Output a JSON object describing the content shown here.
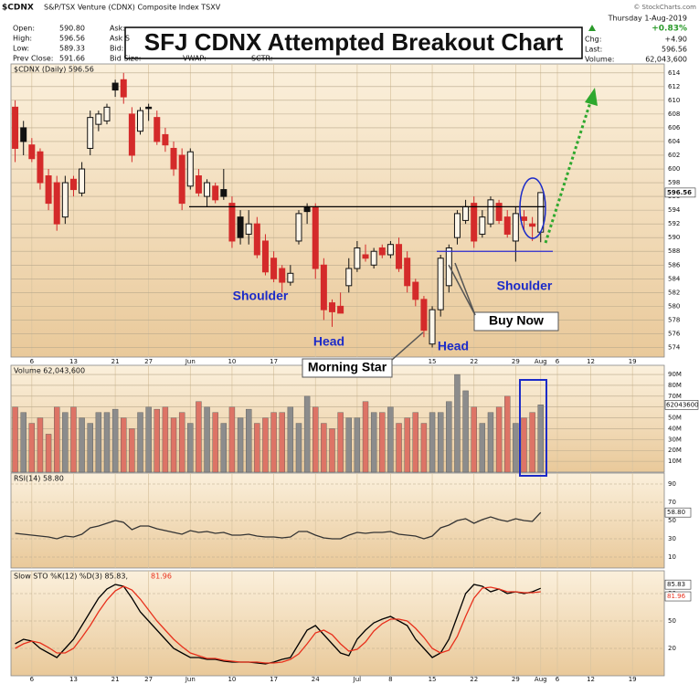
{
  "header": {
    "symbol": "$CDNX",
    "name": "S&P/TSX Venture (CDNX) Composite Index  TSXV",
    "copyright": "© StockCharts.com",
    "date": "Thursday  1-Aug-2019",
    "quote_left": [
      [
        "Open:",
        "590.80"
      ],
      [
        "High:",
        "596.56"
      ],
      [
        "Low:",
        "589.33"
      ],
      [
        "Prev Close:",
        "591.66"
      ]
    ],
    "quote_mid": [
      "Ask:",
      "Ask S",
      "Bid:",
      "Bid Size:"
    ],
    "quote_extra": [
      "VWAP:",
      "SCTR:"
    ],
    "change_pct": "+0.83%",
    "quote_right": [
      [
        "Chg:",
        "+4.90"
      ],
      [
        "Last:",
        "596.56"
      ],
      [
        "Volume:",
        "62,043,600"
      ]
    ]
  },
  "title": "SFJ CDNX Attempted Breakout Chart",
  "annotations": [
    "Shoulder",
    "Head",
    "Morning Star",
    "Head",
    "Buy Now",
    "Shoulder"
  ],
  "chart_data": [
    {
      "type": "candlestick",
      "title": "$CDNX (Daily) 596.56",
      "last_label": "596.56",
      "up_color": "#111111",
      "down_color": "#d42a2a",
      "categories": [
        null,
        null,
        "6",
        null,
        null,
        null,
        null,
        "13",
        null,
        null,
        null,
        null,
        "21",
        null,
        null,
        null,
        "27",
        null,
        null,
        null,
        null,
        "Jun",
        null,
        null,
        null,
        null,
        "10",
        null,
        null,
        null,
        null,
        "17",
        null,
        null,
        null,
        null,
        "24",
        null,
        null,
        null,
        null,
        "Jul",
        null,
        null,
        null,
        "8",
        null,
        null,
        null,
        null,
        "15",
        null,
        null,
        null,
        null,
        "22",
        null,
        null,
        null,
        null,
        "29",
        null,
        null,
        "Aug",
        null,
        "6",
        null,
        null,
        null,
        "12",
        null,
        null,
        null,
        null,
        "19",
        null,
        null
      ],
      "open": [
        609,
        606,
        603.5,
        602.5,
        599,
        598,
        593,
        598.5,
        596.5,
        603,
        606.5,
        607,
        612.5,
        613,
        608,
        605.5,
        609,
        607.5,
        605,
        603,
        602,
        597.5,
        599,
        596,
        597.5,
        597,
        595,
        593,
        590.5,
        592,
        589.5,
        587,
        585.5,
        583.5,
        589.5,
        594.5,
        594.5,
        586,
        580.5,
        580,
        583,
        585.5,
        587.5,
        586,
        588.5,
        587.5,
        589,
        587,
        583.5,
        581,
        574.5,
        579.5,
        583,
        590,
        592.5,
        595,
        590.5,
        592,
        595,
        593,
        589.5,
        593,
        592,
        590.8,
        null,
        null,
        null,
        null,
        null,
        null,
        null,
        null,
        null,
        null,
        null,
        null,
        null
      ],
      "high": [
        610,
        607,
        604.5,
        603,
        600,
        599,
        599,
        599,
        601,
        608.5,
        608.5,
        609.5,
        613,
        614,
        609,
        609,
        609.5,
        608.5,
        606,
        604,
        603,
        603,
        600,
        598.5,
        598,
        600,
        596,
        594,
        594,
        593,
        590.5,
        588,
        586,
        586,
        594,
        595,
        595,
        587,
        581,
        582,
        587,
        589.5,
        589,
        588.5,
        589,
        589.5,
        590,
        588,
        584,
        581.5,
        580,
        587.5,
        589,
        594,
        595.5,
        596,
        594,
        596,
        595.5,
        594,
        594.5,
        594,
        593,
        596.56,
        null,
        null,
        null,
        null,
        null,
        null,
        null,
        null,
        null,
        null,
        null,
        null,
        null
      ],
      "low": [
        601,
        602,
        601,
        597,
        594,
        591,
        592,
        596,
        596,
        602,
        605.5,
        606.5,
        610.5,
        609.5,
        601,
        605,
        607,
        603.5,
        602.5,
        599,
        594,
        597,
        596,
        594.5,
        595,
        595.5,
        588.5,
        589,
        589,
        587,
        584.5,
        583.5,
        582,
        583,
        589,
        592,
        584,
        578,
        577,
        579,
        582,
        585,
        586.5,
        585.5,
        587,
        587,
        585,
        582,
        580,
        575.5,
        574,
        578.5,
        582,
        589,
        592,
        588.5,
        590,
        591.5,
        592,
        590,
        586.5,
        591,
        589.5,
        589.33,
        null,
        null,
        null,
        null,
        null,
        null,
        null,
        null,
        null,
        null,
        null,
        null,
        null
      ],
      "close": [
        603,
        604,
        601.5,
        598,
        595,
        592,
        598,
        597,
        600,
        607.5,
        608,
        609,
        611.5,
        610.5,
        602,
        608.5,
        608.8,
        604,
        603.5,
        600,
        595,
        602.5,
        596.5,
        598,
        595.5,
        596,
        589.5,
        590,
        592,
        587.5,
        585,
        584,
        583.5,
        584.8,
        593.5,
        593.8,
        585.5,
        579.5,
        579.2,
        579,
        585.5,
        588.5,
        587,
        588,
        587.5,
        589,
        585.5,
        583,
        581,
        576.5,
        579.5,
        587,
        588.5,
        593.5,
        594.5,
        589.5,
        593,
        595.5,
        592.5,
        590.5,
        593.5,
        592.5,
        591.66,
        596.56,
        null,
        null,
        null,
        null,
        null,
        null,
        null,
        null,
        null,
        null,
        null,
        null,
        null
      ],
      "reference_lines": [
        {
          "value": 594.5,
          "color": "#000000"
        },
        {
          "value": 588,
          "color": "#2a2ad0"
        }
      ],
      "ylim": [
        572.6,
        615.3
      ],
      "yticks": [
        574,
        576,
        578,
        580,
        582,
        584,
        586,
        588,
        590,
        592,
        594,
        596,
        598,
        600,
        602,
        604,
        606,
        608,
        610,
        612,
        614
      ],
      "grid": true
    },
    {
      "type": "bar",
      "title": "Volume 62,043,600",
      "last_label": "62043600",
      "up_color": "#8c8c8c",
      "down_color": "#dd7466",
      "values": [
        60,
        55,
        45,
        50,
        35,
        60,
        55,
        60,
        50,
        45,
        55,
        55,
        58,
        50,
        40,
        55,
        60,
        58,
        60,
        50,
        55,
        45,
        65,
        60,
        55,
        45,
        60,
        50,
        58,
        45,
        50,
        55,
        55,
        60,
        45,
        70,
        60,
        45,
        40,
        55,
        50,
        50,
        65,
        55,
        55,
        60,
        45,
        50,
        55,
        45,
        55,
        55,
        65,
        90,
        75,
        60,
        45,
        55,
        60,
        70,
        45,
        50,
        55,
        62.0436
      ],
      "ylim": [
        0,
        98.5
      ],
      "yticks": [
        {
          "value": 10,
          "label": "10M"
        },
        {
          "value": 20,
          "label": "20M"
        },
        {
          "value": 30,
          "label": "30M"
        },
        {
          "value": 40,
          "label": "40M"
        },
        {
          "value": 50,
          "label": "50M"
        },
        {
          "value": 60,
          "label": "60M"
        },
        {
          "value": 70,
          "label": "70M"
        },
        {
          "value": 80,
          "label": "80M"
        },
        {
          "value": 90,
          "label": "90M"
        }
      ],
      "grid": true
    },
    {
      "type": "line",
      "title": "RSI(14) 58.80",
      "last_label": "58.80",
      "color": "#333333",
      "values": [
        36,
        35,
        34,
        33,
        32,
        30,
        33,
        32,
        35,
        42,
        44,
        47,
        50,
        48,
        40,
        44,
        44,
        41,
        39,
        37,
        35,
        39,
        37,
        38,
        36,
        37,
        34,
        34,
        35,
        33,
        32,
        32,
        31,
        32,
        38,
        38,
        34,
        31,
        30,
        30,
        34,
        37,
        36,
        37,
        37,
        38,
        35,
        34,
        33,
        30,
        33,
        42,
        45,
        50,
        52,
        47,
        51,
        54,
        51,
        49,
        52,
        50,
        49,
        58.8
      ],
      "ylim": [
        -2,
        102
      ],
      "yticks": [
        10,
        30,
        50,
        70,
        90
      ],
      "grid": true
    },
    {
      "type": "line",
      "title": "Slow STO %K(12) %D(3) 85.83,",
      "title_d": "81.96",
      "last_labels": [
        "85.83",
        "81.96"
      ],
      "series": [
        {
          "color": "#000000",
          "values": [
            25,
            30,
            28,
            20,
            15,
            10,
            20,
            30,
            45,
            60,
            75,
            85,
            90,
            88,
            75,
            60,
            50,
            40,
            30,
            20,
            15,
            10,
            10,
            8,
            8,
            6,
            5,
            5,
            5,
            4,
            3,
            5,
            8,
            10,
            25,
            40,
            45,
            35,
            25,
            15,
            12,
            30,
            40,
            48,
            52,
            55,
            50,
            45,
            30,
            20,
            10,
            15,
            30,
            55,
            80,
            90,
            88,
            82,
            85,
            80,
            82,
            80,
            82,
            85.83
          ]
        },
        {
          "color": "#e8301c",
          "values": [
            20,
            25,
            28,
            26,
            21,
            15,
            15,
            20,
            32,
            45,
            60,
            73,
            83,
            88,
            84,
            74,
            62,
            50,
            40,
            30,
            22,
            15,
            12,
            9,
            9,
            7,
            6,
            5,
            5,
            5,
            4,
            4,
            5,
            8,
            14,
            25,
            37,
            40,
            35,
            25,
            17,
            19,
            27,
            39,
            47,
            52,
            52,
            50,
            42,
            32,
            20,
            15,
            18,
            33,
            55,
            75,
            86,
            87,
            85,
            82,
            82,
            81,
            81,
            81.96
          ]
        }
      ],
      "ylim": [
        -10,
        105
      ],
      "yticks": [
        20,
        50,
        80
      ],
      "grid": true
    }
  ]
}
